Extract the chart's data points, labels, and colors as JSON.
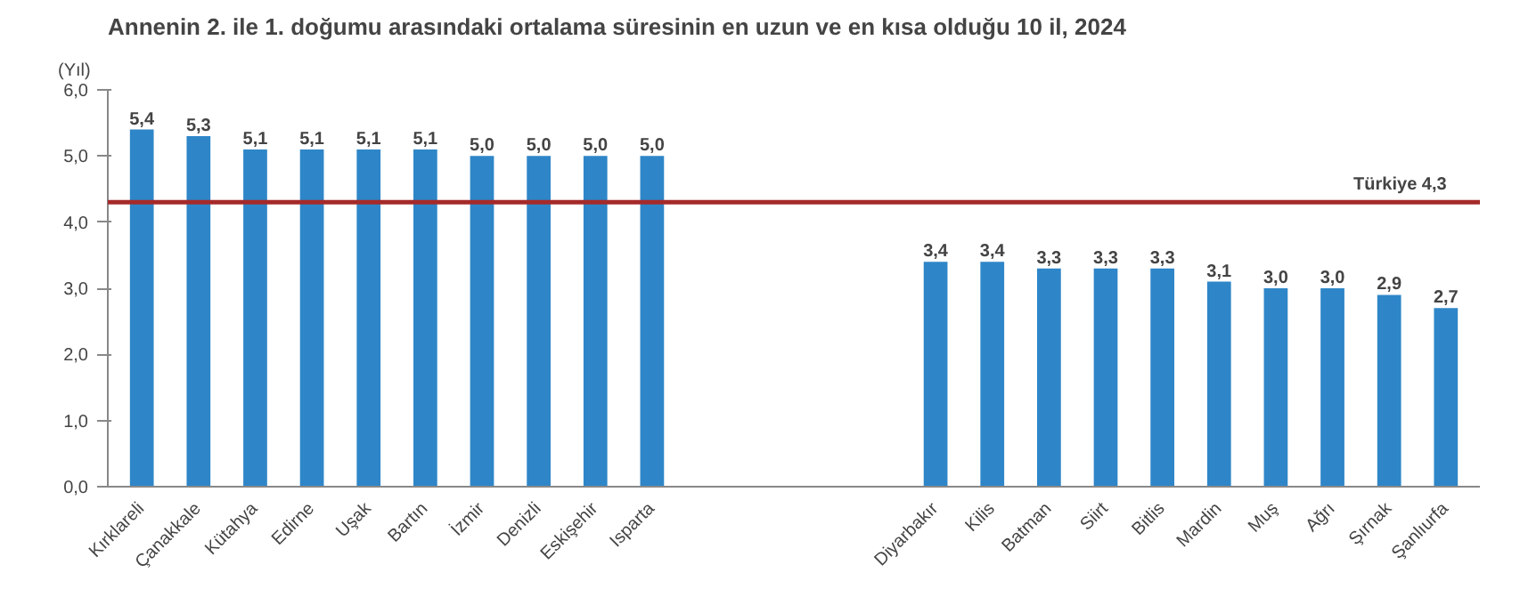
{
  "chart_data": {
    "type": "bar",
    "title": "Annenin 2. ile 1. doğumu arasındaki ortalama süresinin en uzun ve en kısa olduğu 10 il, 2024",
    "ylabel": "(Yıl)",
    "categories": [
      "Kırklareli",
      "Çanakkale",
      "Kütahya",
      "Edirne",
      "Uşak",
      "Bartın",
      "İzmir",
      "Denizli",
      "Eskişehir",
      "Isparta",
      null,
      null,
      null,
      null,
      "Diyarbakır",
      "Kilis",
      "Batman",
      "Siirt",
      "Bitlis",
      "Mardin",
      "Muş",
      "Ağrı",
      "Şırnak",
      "Şanlıurfa"
    ],
    "values": [
      5.4,
      5.3,
      5.1,
      5.1,
      5.1,
      5.1,
      5.0,
      5.0,
      5.0,
      5.0,
      null,
      null,
      null,
      null,
      3.4,
      3.4,
      3.3,
      3.3,
      3.3,
      3.1,
      3.0,
      3.0,
      2.9,
      2.7
    ],
    "value_labels": [
      "5,4",
      "5,3",
      "5,1",
      "5,1",
      "5,1",
      "5,1",
      "5,0",
      "5,0",
      "5,0",
      "5,0",
      null,
      null,
      null,
      null,
      "3,4",
      "3,4",
      "3,3",
      "3,3",
      "3,3",
      "3,1",
      "3,0",
      "3,0",
      "2,9",
      "2,7"
    ],
    "color": "#2e86c8",
    "ylim": [
      0,
      6
    ],
    "yticks": [
      {
        "value": 0,
        "label": "0,0"
      },
      {
        "value": 1,
        "label": "1,0"
      },
      {
        "value": 2,
        "label": "2,0"
      },
      {
        "value": 3,
        "label": "3,0"
      },
      {
        "value": 4,
        "label": "4,0"
      },
      {
        "value": 5,
        "label": "5,0"
      },
      {
        "value": 6,
        "label": "6,0"
      }
    ],
    "ref_lines": [
      {
        "axis": "y",
        "value": 4.3,
        "label": "Türkiye  4,3",
        "color": "#a52a2a"
      }
    ],
    "grid": false
  }
}
